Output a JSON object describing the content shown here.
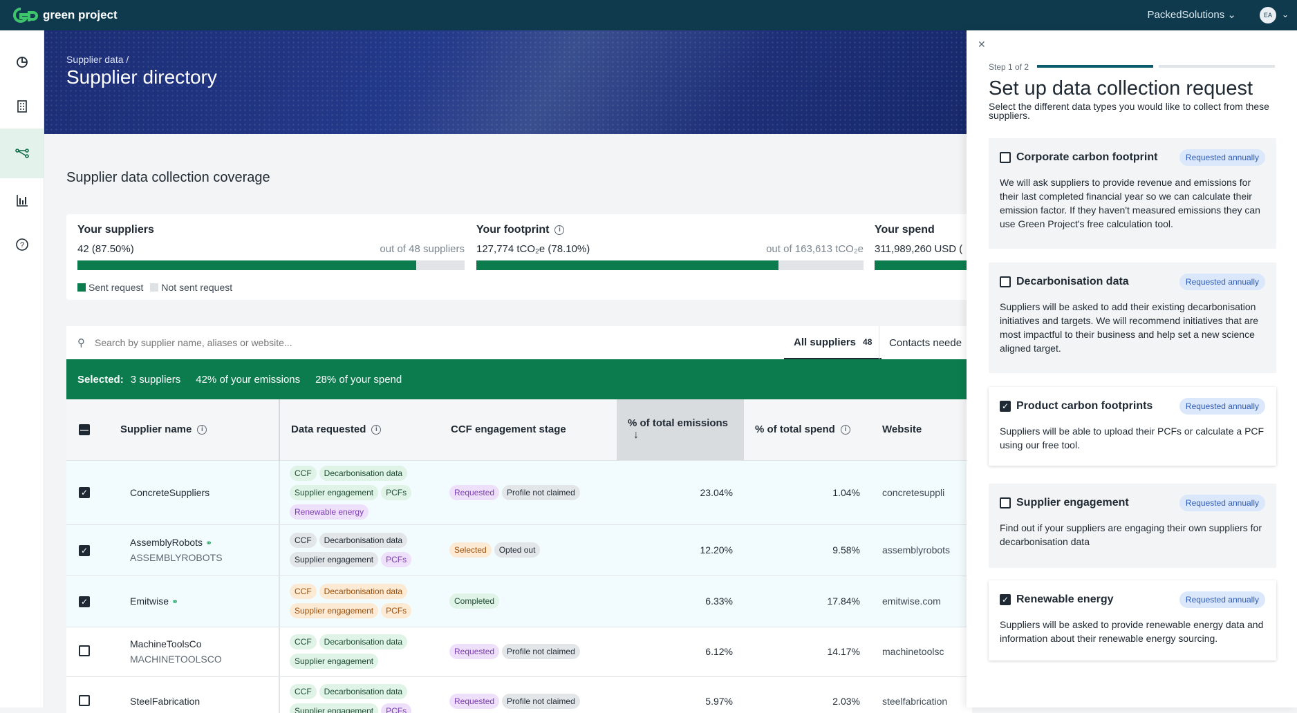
{
  "topbar": {
    "brand": "green project",
    "org": "PackedSolutions",
    "avatar": "EA"
  },
  "sidebar": {
    "items": [
      {
        "icon": "chart-pie-icon"
      },
      {
        "icon": "building-icon"
      },
      {
        "icon": "network-icon"
      },
      {
        "icon": "bar-chart-icon"
      },
      {
        "icon": "help-icon"
      }
    ]
  },
  "hero": {
    "breadcrumb": "Supplier data  /",
    "title": "Supplier directory"
  },
  "coverage": {
    "title": "Supplier data collection coverage",
    "suppliers": {
      "label": "Your suppliers",
      "value": "42 (87.50%)",
      "total": "out of 48 suppliers",
      "fill": 0.875
    },
    "footprint": {
      "label": "Your footprint",
      "value": "127,774 tCO₂e (78.10%)",
      "total": "out of 163,613 tCO₂e",
      "fill": 0.781
    },
    "spend": {
      "label": "Your spend",
      "value": "311,989,260 USD (",
      "fill": 1
    },
    "legend": {
      "sent": "Sent request",
      "not_sent": "Not sent request"
    }
  },
  "search": {
    "placeholder": "Search by supplier name, aliases or website..."
  },
  "tabs": [
    {
      "label": "All suppliers",
      "count": "48"
    },
    {
      "label": "Contacts neede"
    }
  ],
  "selection": {
    "label": "Selected:",
    "suppliers": "3 suppliers",
    "emissions": "42% of your emissions",
    "spend": "28% of your spend"
  },
  "table": {
    "headers": {
      "name": "Supplier name",
      "data": "Data requested",
      "stage": "CCF engagement stage",
      "emissions": "% of total emissions",
      "spend": "% of total spend",
      "website": "Website"
    },
    "rows": [
      {
        "name": "ConcreteSuppliers",
        "alias": "",
        "linked": false,
        "checked": true,
        "chips": [
          [
            "CCF",
            "green"
          ],
          [
            "Decarbonisation data",
            "green"
          ],
          [
            "Supplier engagement",
            "green"
          ],
          [
            "PCFs",
            "green"
          ],
          [
            "Renewable energy",
            "purple"
          ]
        ],
        "stage": [
          [
            "Requested",
            "purple"
          ],
          [
            "Profile not claimed",
            "grey"
          ]
        ],
        "emissions": "23.04%",
        "spend": "1.04%",
        "website": "concretesuppli"
      },
      {
        "name": "AssemblyRobots",
        "alias": "ASSEMBLYROBOTS",
        "linked": true,
        "checked": true,
        "chips": [
          [
            "CCF",
            "grey"
          ],
          [
            "Decarbonisation data",
            "grey"
          ],
          [
            "Supplier engagement",
            "grey"
          ],
          [
            "PCFs",
            "purple"
          ]
        ],
        "stage": [
          [
            "Selected",
            "orange"
          ],
          [
            "Opted out",
            "grey"
          ]
        ],
        "emissions": "12.20%",
        "spend": "9.58%",
        "website": "assemblyrobots"
      },
      {
        "name": "Emitwise",
        "alias": "",
        "linked": true,
        "checked": true,
        "chips": [
          [
            "CCF",
            "orange"
          ],
          [
            "Decarbonisation data",
            "orange"
          ],
          [
            "Supplier engagement",
            "orange"
          ],
          [
            "PCFs",
            "orange"
          ]
        ],
        "stage": [
          [
            "Completed",
            "green"
          ]
        ],
        "emissions": "6.33%",
        "spend": "17.84%",
        "website": "emitwise.com"
      },
      {
        "name": "MachineToolsCo",
        "alias": "MACHINETOOLSCO",
        "linked": false,
        "checked": false,
        "chips": [
          [
            "CCF",
            "green"
          ],
          [
            "Decarbonisation data",
            "green"
          ],
          [
            "Supplier engagement",
            "green"
          ]
        ],
        "stage": [
          [
            "Requested",
            "purple"
          ],
          [
            "Profile not claimed",
            "grey"
          ]
        ],
        "emissions": "6.12%",
        "spend": "14.17%",
        "website": "machinetoolsc"
      },
      {
        "name": "SteelFabrication",
        "alias": "",
        "linked": false,
        "checked": false,
        "chips": [
          [
            "CCF",
            "green"
          ],
          [
            "Decarbonisation data",
            "green"
          ],
          [
            "Supplier engagement",
            "green"
          ],
          [
            "PCFs",
            "purple"
          ]
        ],
        "stage": [
          [
            "Requested",
            "purple"
          ],
          [
            "Profile not claimed",
            "grey"
          ]
        ],
        "emissions": "5.97%",
        "spend": "2.03%",
        "website": "steelfabrication"
      }
    ]
  },
  "drawer": {
    "step": "Step 1 of 2",
    "step_progress": 0.5,
    "title": "Set up data collection request",
    "description": "Select the different data types you would like to collect from these suppliers.",
    "cards": [
      {
        "title": "Corporate carbon footprint",
        "badge": "Requested annually",
        "checked": false,
        "body": "We will ask suppliers to provide revenue and emissions for their last completed financial year so we can calculate their emission factor. If they haven't measured emissions they can use Green Project's free calculation tool."
      },
      {
        "title": "Decarbonisation data",
        "badge": "Requested annually",
        "checked": false,
        "body": "Suppliers will be asked to add their existing decarbonisation initiatives and targets. We will recommend initiatives that are most impactful to their business and help set a new science aligned target."
      },
      {
        "title": "Product carbon footprints",
        "badge": "Requested annually",
        "checked": true,
        "body": "Suppliers will be able to upload their PCFs or calculate a PCF using our free tool."
      },
      {
        "title": "Supplier engagement",
        "badge": "Requested annually",
        "checked": false,
        "body": "Find out if your suppliers are engaging their own suppliers for decarbonisation data"
      },
      {
        "title": "Renewable energy",
        "badge": "Requested annually",
        "checked": true,
        "body": "Suppliers will be asked to provide renewable energy data and information about their renewable energy sourcing."
      }
    ]
  },
  "colors": {
    "brand": "#0f3a4e",
    "accent": "#0c7c4f",
    "hero": "#1c2d74"
  }
}
